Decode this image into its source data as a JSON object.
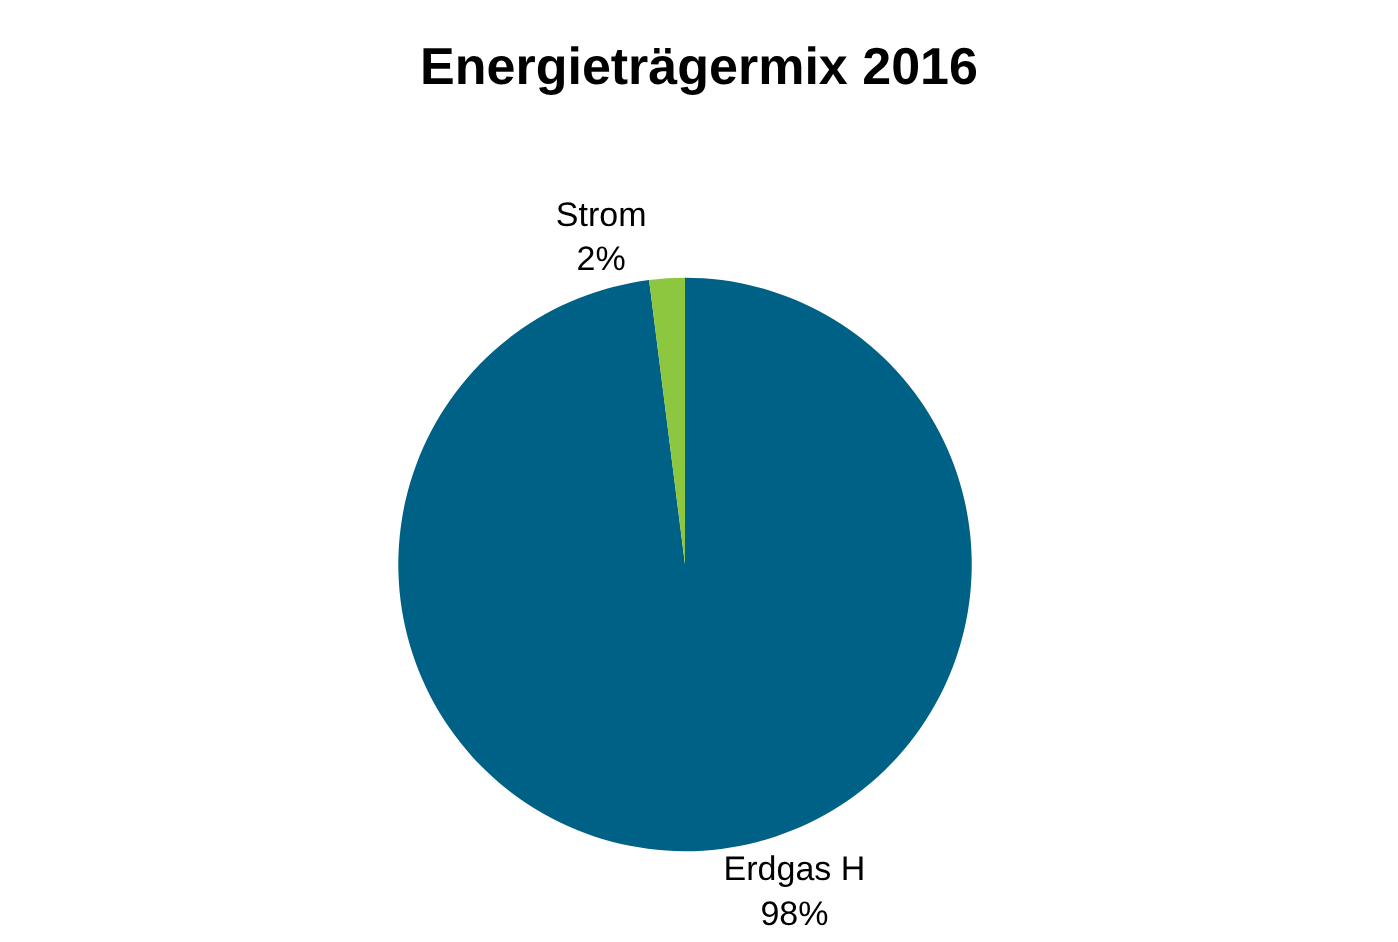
{
  "chart_data": {
    "type": "pie",
    "title": "Energieträgermix 2016",
    "categories": [
      "Erdgas H",
      "Strom"
    ],
    "values": [
      98,
      2
    ],
    "value_labels": [
      "98%",
      "2%"
    ],
    "colors": [
      "#006186",
      "#8dc63f"
    ],
    "legend": false
  }
}
